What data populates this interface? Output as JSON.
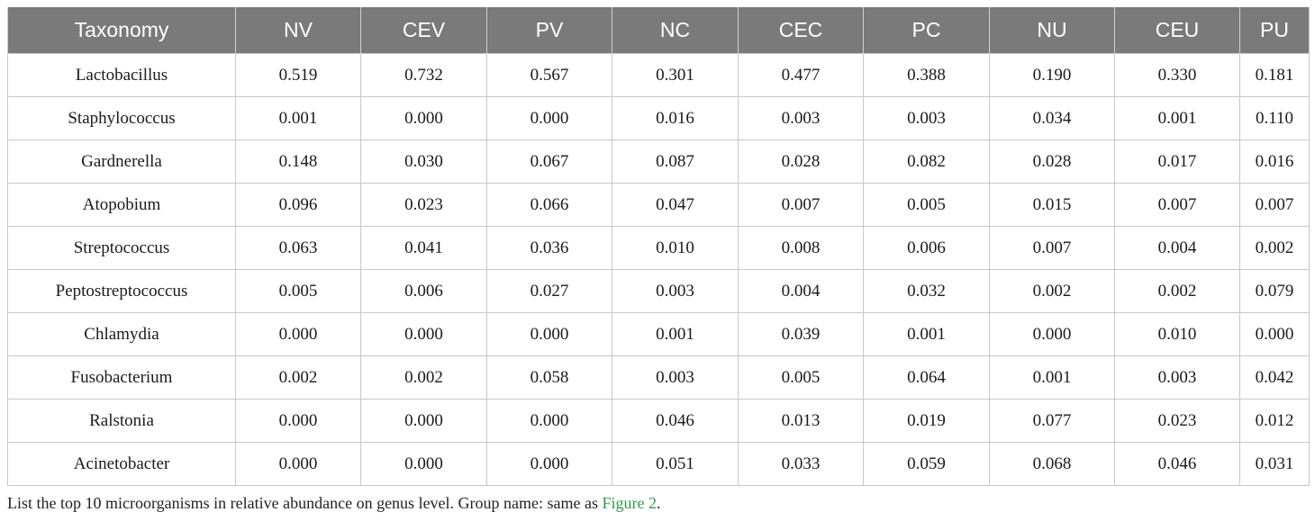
{
  "table": {
    "headers": [
      "Taxonomy",
      "NV",
      "CEV",
      "PV",
      "NC",
      "CEC",
      "PC",
      "NU",
      "CEU",
      "PU"
    ],
    "rows": [
      [
        "Lactobacillus",
        "0.519",
        "0.732",
        "0.567",
        "0.301",
        "0.477",
        "0.388",
        "0.190",
        "0.330",
        "0.181"
      ],
      [
        "Staphylococcus",
        "0.001",
        "0.000",
        "0.000",
        "0.016",
        "0.003",
        "0.003",
        "0.034",
        "0.001",
        "0.110"
      ],
      [
        "Gardnerella",
        "0.148",
        "0.030",
        "0.067",
        "0.087",
        "0.028",
        "0.082",
        "0.028",
        "0.017",
        "0.016"
      ],
      [
        "Atopobium",
        "0.096",
        "0.023",
        "0.066",
        "0.047",
        "0.007",
        "0.005",
        "0.015",
        "0.007",
        "0.007"
      ],
      [
        "Streptococcus",
        "0.063",
        "0.041",
        "0.036",
        "0.010",
        "0.008",
        "0.006",
        "0.007",
        "0.004",
        "0.002"
      ],
      [
        "Peptostreptococcus",
        "0.005",
        "0.006",
        "0.027",
        "0.003",
        "0.004",
        "0.032",
        "0.002",
        "0.002",
        "0.079"
      ],
      [
        "Chlamydia",
        "0.000",
        "0.000",
        "0.000",
        "0.001",
        "0.039",
        "0.001",
        "0.000",
        "0.010",
        "0.000"
      ],
      [
        "Fusobacterium",
        "0.002",
        "0.002",
        "0.058",
        "0.003",
        "0.005",
        "0.064",
        "0.001",
        "0.003",
        "0.042"
      ],
      [
        "Ralstonia",
        "0.000",
        "0.000",
        "0.000",
        "0.046",
        "0.013",
        "0.019",
        "0.077",
        "0.023",
        "0.012"
      ],
      [
        "Acinetobacter",
        "0.000",
        "0.000",
        "0.000",
        "0.051",
        "0.033",
        "0.059",
        "0.068",
        "0.046",
        "0.031"
      ]
    ]
  },
  "caption": {
    "text": "List the top 10 microorganisms in relative abundance on genus level. Group name: same as ",
    "link": "Figure 2",
    "end": "."
  },
  "colors": {
    "header_bg": "#7a7a7a",
    "header_text": "#ffffff",
    "link": "#2e9c4a",
    "grid": "#c8c8c8"
  }
}
